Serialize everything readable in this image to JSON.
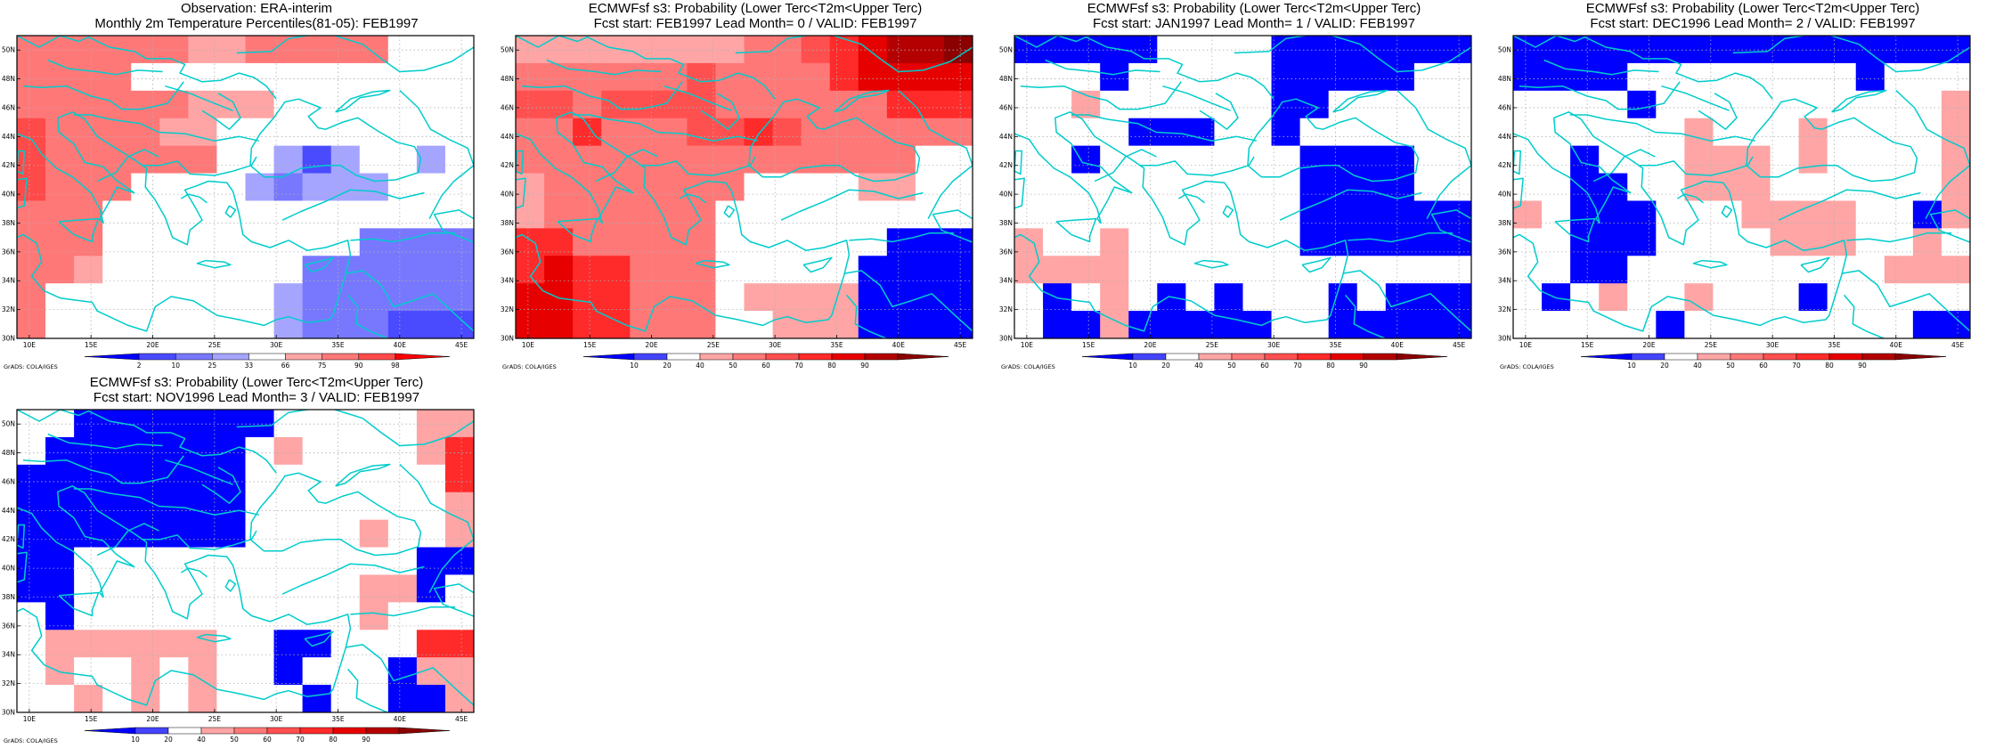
{
  "credit": "GrADS: COLA/IGES",
  "axes": {
    "lon_labels": [
      "10E",
      "15E",
      "20E",
      "25E",
      "30E",
      "35E",
      "40E",
      "45E"
    ],
    "lat_labels": [
      "30N",
      "32N",
      "34N",
      "36N",
      "38N",
      "40N",
      "42N",
      "44N",
      "46N",
      "48N",
      "50N"
    ],
    "lon_range": [
      9,
      46
    ],
    "lat_range": [
      30,
      51
    ]
  },
  "colors": {
    "obs_scale": [
      "#0000ff",
      "#4a4aff",
      "#7878ff",
      "#a5a5ff",
      "#ffffff",
      "#ffa5a5",
      "#ff7878",
      "#ff4a4a",
      "#ff0000"
    ],
    "prob_scale": [
      "#0000ff",
      "#4444ff",
      "#ffffff",
      "#ffa5a5",
      "#ff7878",
      "#ff5050",
      "#ff2a2a",
      "#e60000",
      "#b40000",
      "#8b0000"
    ],
    "coast": "#00cccc",
    "grid": "#b0b0b0"
  },
  "panels": [
    {
      "id": "obs",
      "title_line1": "Observation: ERA-interim",
      "title_line2": "Monthly 2m Temperature Percentiles(81-05): FEB1997",
      "colorbar_ticks": [
        "2",
        "10",
        "25",
        "33",
        "66",
        "75",
        "90",
        "98"
      ],
      "colorbar_scale": "obs_scale",
      "grid": [
        [
          0,
          0,
          0,
          0,
          0,
          0,
          0,
          0,
          0,
          0,
          0,
          0,
          0,
          0,
          0,
          0,
          0,
          0,
          0,
          0,
          0,
          0,
          0,
          0,
          0,
          0,
          0,
          0,
          0,
          0,
          0,
          0,
          0,
          0,
          0,
          0,
          0,
          0,
          0,
          0,
          0,
          0,
          0,
          0,
          0,
          0,
          0,
          0,
          0,
          0,
          0,
          0,
          0,
          0,
          0,
          0,
          0,
          0,
          0,
          0,
          0,
          0,
          0,
          0,
          0,
          0,
          0,
          0,
          0,
          0,
          0,
          0,
          0,
          0,
          0,
          0,
          0,
          0,
          0,
          0,
          0,
          0,
          0,
          0,
          0,
          0,
          0,
          0,
          0,
          0,
          0,
          0,
          0,
          0,
          0,
          0,
          0,
          0,
          0,
          0,
          0,
          0,
          0,
          0,
          0,
          0,
          0,
          0,
          0,
          0,
          0,
          0,
          0,
          0,
          0,
          0,
          0,
          0,
          0,
          0,
          0,
          0,
          0,
          0,
          0,
          0,
          0,
          0,
          0,
          0,
          0,
          0,
          0,
          0,
          0,
          0,
          0,
          0,
          0,
          0,
          0,
          0,
          0,
          0,
          0,
          0,
          0,
          0,
          0,
          0,
          0,
          0,
          0,
          0,
          0,
          0,
          0,
          0,
          0,
          0,
          0,
          0,
          0,
          0,
          0,
          0,
          0,
          0,
          0,
          0,
          0,
          0,
          0,
          0,
          0,
          0,
          0,
          0,
          0,
          0,
          0,
          0,
          0,
          0,
          0,
          0,
          0,
          0,
          0,
          0,
          0,
          0,
          0,
          0,
          0,
          0,
          0,
          0,
          0,
          0,
          0,
          0,
          0,
          0,
          0,
          0,
          0,
          0,
          0,
          0,
          0,
          0,
          0,
          0,
          0,
          0,
          0,
          0,
          0,
          0,
          0,
          0,
          0,
          0,
          0,
          0,
          0,
          0,
          0,
          0,
          0,
          0,
          0,
          0,
          0,
          0,
          0,
          0,
          0,
          0
        ]
      ],
      "cells": [
        [
          6,
          6,
          6,
          6,
          6,
          6,
          5,
          5,
          6,
          6,
          6,
          6,
          6,
          4,
          4,
          4
        ],
        [
          6,
          6,
          6,
          6,
          4,
          4,
          4,
          4,
          4,
          4,
          4,
          4,
          4,
          4,
          4,
          4
        ],
        [
          6,
          6,
          6,
          6,
          6,
          6,
          5,
          5,
          5,
          4,
          4,
          4,
          4,
          4,
          4,
          4
        ],
        [
          7,
          6,
          6,
          6,
          6,
          5,
          5,
          4,
          4,
          4,
          4,
          4,
          4,
          4,
          4,
          4
        ],
        [
          7,
          6,
          6,
          6,
          6,
          6,
          6,
          4,
          4,
          3,
          1,
          3,
          4,
          4,
          3,
          4
        ],
        [
          7,
          6,
          6,
          6,
          4,
          4,
          4,
          4,
          3,
          2,
          3,
          3,
          3,
          4,
          4,
          4
        ],
        [
          6,
          6,
          6,
          4,
          4,
          4,
          4,
          4,
          4,
          4,
          4,
          4,
          4,
          4,
          4,
          4
        ],
        [
          6,
          6,
          6,
          4,
          4,
          4,
          4,
          4,
          4,
          4,
          4,
          4,
          2,
          2,
          2,
          2
        ],
        [
          6,
          6,
          5,
          4,
          4,
          4,
          4,
          4,
          4,
          4,
          2,
          2,
          2,
          2,
          2,
          2
        ],
        [
          6,
          4,
          4,
          4,
          4,
          4,
          4,
          4,
          4,
          3,
          2,
          2,
          2,
          2,
          2,
          2
        ],
        [
          6,
          4,
          4,
          4,
          4,
          4,
          4,
          4,
          4,
          3,
          2,
          2,
          2,
          1,
          1,
          1
        ]
      ]
    },
    {
      "id": "lead0",
      "title_line1": "ECMWFsf s3: Probability (Lower Terc<T2m<Upper Terc)",
      "title_line2": "Fcst start: FEB1997  Lead Month= 0 / VALID: FEB1997",
      "colorbar_ticks": [
        "10",
        "20",
        "40",
        "50",
        "60",
        "70",
        "80",
        "90"
      ],
      "colorbar_scale": "prob_scale",
      "cells": [
        [
          3,
          3,
          3,
          3,
          3,
          3,
          3,
          3,
          4,
          4,
          5,
          6,
          7,
          8,
          8,
          9
        ],
        [
          4,
          4,
          4,
          4,
          4,
          4,
          5,
          4,
          4,
          4,
          4,
          6,
          7,
          7,
          7,
          7
        ],
        [
          5,
          5,
          4,
          5,
          5,
          5,
          5,
          4,
          4,
          4,
          4,
          4,
          4,
          6,
          6,
          6
        ],
        [
          4,
          4,
          6,
          4,
          4,
          4,
          5,
          5,
          6,
          5,
          4,
          4,
          4,
          4,
          4,
          4
        ],
        [
          4,
          4,
          4,
          4,
          4,
          4,
          4,
          4,
          4,
          4,
          4,
          4,
          4,
          4,
          2,
          2
        ],
        [
          3,
          4,
          4,
          4,
          4,
          4,
          4,
          4,
          2,
          2,
          2,
          2,
          3,
          3,
          2,
          2
        ],
        [
          3,
          4,
          4,
          4,
          4,
          4,
          4,
          2,
          2,
          2,
          2,
          2,
          2,
          2,
          2,
          2
        ],
        [
          6,
          6,
          4,
          4,
          4,
          4,
          4,
          2,
          2,
          2,
          2,
          2,
          2,
          0,
          0,
          0
        ],
        [
          6,
          7,
          6,
          6,
          4,
          4,
          4,
          2,
          2,
          2,
          2,
          2,
          0,
          0,
          0,
          0
        ],
        [
          7,
          7,
          6,
          6,
          4,
          4,
          4,
          2,
          3,
          3,
          3,
          3,
          0,
          0,
          0,
          0
        ],
        [
          7,
          7,
          6,
          6,
          4,
          4,
          4,
          2,
          2,
          3,
          3,
          3,
          0,
          0,
          0,
          0
        ]
      ]
    },
    {
      "id": "lead1",
      "title_line1": "ECMWFsf s3: Probability (Lower Terc<T2m<Upper Terc)",
      "title_line2": "Fcst start: JAN1997  Lead Month= 1 / VALID: FEB1997",
      "colorbar_ticks": [
        "10",
        "20",
        "40",
        "50",
        "60",
        "70",
        "80",
        "90"
      ],
      "colorbar_scale": "prob_scale",
      "cells": [
        [
          0,
          0,
          0,
          0,
          0,
          2,
          2,
          2,
          2,
          0,
          0,
          0,
          0,
          0,
          0,
          0
        ],
        [
          2,
          2,
          2,
          0,
          2,
          2,
          2,
          2,
          2,
          0,
          0,
          0,
          0,
          0,
          2,
          2
        ],
        [
          2,
          2,
          3,
          2,
          2,
          2,
          2,
          2,
          2,
          0,
          0,
          2,
          2,
          2,
          2,
          2
        ],
        [
          2,
          2,
          2,
          2,
          0,
          0,
          0,
          2,
          2,
          0,
          2,
          2,
          2,
          2,
          2,
          2
        ],
        [
          2,
          2,
          0,
          2,
          2,
          2,
          2,
          2,
          2,
          2,
          0,
          0,
          0,
          0,
          2,
          2
        ],
        [
          2,
          2,
          2,
          2,
          2,
          2,
          2,
          2,
          2,
          2,
          0,
          0,
          0,
          0,
          2,
          2
        ],
        [
          2,
          2,
          2,
          2,
          2,
          2,
          2,
          2,
          2,
          2,
          0,
          0,
          0,
          0,
          0,
          0
        ],
        [
          3,
          2,
          2,
          3,
          2,
          2,
          2,
          2,
          2,
          2,
          0,
          0,
          0,
          0,
          0,
          0
        ],
        [
          3,
          3,
          3,
          3,
          2,
          2,
          2,
          2,
          2,
          2,
          2,
          2,
          2,
          2,
          2,
          2
        ],
        [
          2,
          0,
          2,
          3,
          2,
          0,
          2,
          0,
          2,
          2,
          2,
          0,
          2,
          0,
          0,
          0
        ],
        [
          2,
          0,
          0,
          3,
          0,
          0,
          0,
          0,
          0,
          2,
          2,
          0,
          0,
          0,
          0,
          0
        ]
      ]
    },
    {
      "id": "lead2",
      "title_line1": "ECMWFsf s3: Probability (Lower Terc<T2m<Upper Terc)",
      "title_line2": "Fcst start: DEC1996  Lead Month= 2 / VALID: FEB1997",
      "colorbar_ticks": [
        "10",
        "20",
        "40",
        "50",
        "60",
        "70",
        "80",
        "90"
      ],
      "colorbar_scale": "prob_scale",
      "cells": [
        [
          0,
          0,
          0,
          0,
          0,
          0,
          0,
          0,
          0,
          0,
          0,
          0,
          0,
          0,
          0,
          0
        ],
        [
          0,
          0,
          0,
          0,
          2,
          2,
          2,
          2,
          2,
          2,
          2,
          2,
          0,
          2,
          2,
          2
        ],
        [
          2,
          2,
          2,
          2,
          0,
          2,
          2,
          2,
          2,
          2,
          2,
          2,
          2,
          2,
          2,
          3
        ],
        [
          2,
          2,
          2,
          2,
          2,
          2,
          3,
          2,
          2,
          2,
          3,
          2,
          2,
          2,
          2,
          3
        ],
        [
          2,
          2,
          0,
          2,
          2,
          2,
          3,
          3,
          3,
          2,
          3,
          2,
          2,
          2,
          2,
          3
        ],
        [
          2,
          2,
          0,
          0,
          2,
          2,
          3,
          3,
          3,
          2,
          2,
          2,
          2,
          2,
          2,
          3
        ],
        [
          3,
          2,
          0,
          0,
          0,
          2,
          2,
          2,
          3,
          3,
          3,
          3,
          2,
          2,
          0,
          3
        ],
        [
          2,
          2,
          0,
          0,
          0,
          2,
          2,
          2,
          2,
          3,
          3,
          3,
          2,
          2,
          3,
          2
        ],
        [
          2,
          2,
          0,
          0,
          2,
          2,
          2,
          2,
          2,
          2,
          2,
          2,
          2,
          3,
          3,
          3
        ],
        [
          2,
          0,
          2,
          3,
          2,
          2,
          3,
          2,
          2,
          2,
          0,
          2,
          2,
          2,
          2,
          2
        ],
        [
          2,
          2,
          2,
          2,
          2,
          0,
          2,
          2,
          2,
          2,
          2,
          2,
          2,
          2,
          0,
          0
        ]
      ]
    },
    {
      "id": "lead3",
      "title_line1": "ECMWFsf s3: Probability (Lower Terc<T2m<Upper Terc)",
      "title_line2": "Fcst start: NOV1996  Lead Month= 3 / VALID: FEB1997",
      "colorbar_ticks": [
        "10",
        "20",
        "40",
        "50",
        "60",
        "70",
        "80",
        "90"
      ],
      "colorbar_scale": "prob_scale",
      "cells": [
        [
          2,
          2,
          0,
          0,
          0,
          0,
          0,
          0,
          0,
          2,
          2,
          2,
          2,
          2,
          3,
          3
        ],
        [
          2,
          0,
          0,
          0,
          0,
          0,
          0,
          0,
          2,
          3,
          2,
          2,
          2,
          2,
          3,
          6
        ],
        [
          0,
          0,
          0,
          0,
          0,
          0,
          0,
          0,
          2,
          2,
          2,
          2,
          2,
          2,
          2,
          6
        ],
        [
          0,
          0,
          0,
          0,
          0,
          0,
          0,
          0,
          2,
          2,
          2,
          2,
          2,
          2,
          2,
          3
        ],
        [
          0,
          0,
          0,
          0,
          0,
          0,
          0,
          0,
          2,
          2,
          2,
          2,
          3,
          2,
          2,
          3
        ],
        [
          0,
          0,
          2,
          2,
          2,
          2,
          2,
          2,
          2,
          2,
          2,
          2,
          2,
          2,
          0,
          0
        ],
        [
          0,
          0,
          2,
          2,
          2,
          2,
          2,
          2,
          2,
          2,
          2,
          2,
          3,
          3,
          0,
          2
        ],
        [
          2,
          0,
          2,
          2,
          2,
          2,
          2,
          2,
          2,
          2,
          2,
          2,
          3,
          2,
          2,
          2
        ],
        [
          2,
          3,
          3,
          3,
          3,
          3,
          3,
          2,
          2,
          0,
          0,
          2,
          2,
          2,
          6,
          6
        ],
        [
          2,
          3,
          2,
          2,
          3,
          2,
          3,
          2,
          2,
          0,
          2,
          2,
          2,
          0,
          3,
          3
        ],
        [
          2,
          2,
          3,
          2,
          3,
          2,
          3,
          2,
          2,
          2,
          0,
          2,
          2,
          0,
          0,
          3
        ]
      ]
    }
  ]
}
